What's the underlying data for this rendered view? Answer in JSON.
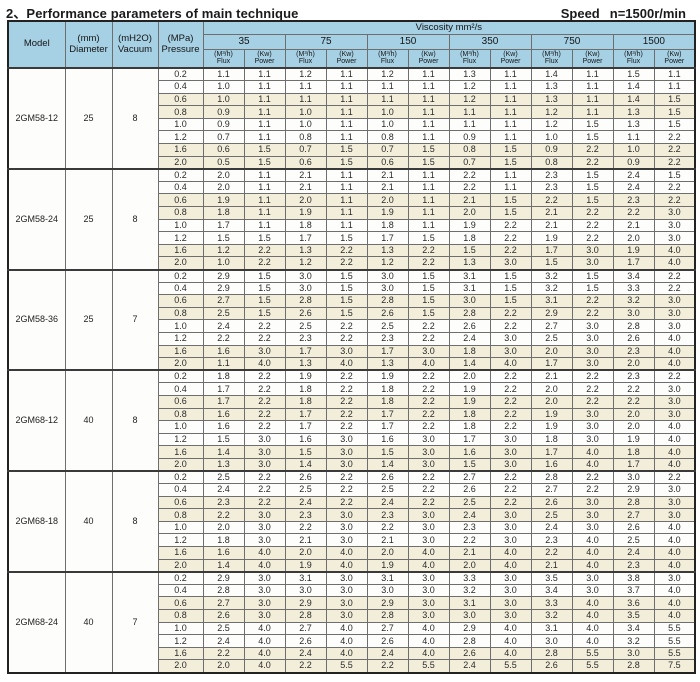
{
  "title": "2、Performance parameters of main technique",
  "speed": {
    "label": "Speed",
    "value": "n=1500r/min"
  },
  "header": {
    "model": "Model",
    "diameter": [
      "(mm)",
      "Diameter"
    ],
    "vacuum": [
      "(mH2O)",
      "Vacuum"
    ],
    "pressure": [
      "(MPa)",
      "Pressure"
    ],
    "viscosity_title": "Viscosity mm²/s",
    "viscosity_values": [
      "35",
      "75",
      "150",
      "350",
      "750",
      "1500"
    ],
    "flux": [
      "(M³/h)",
      "Flux"
    ],
    "power": [
      "(Kw)",
      "Power"
    ]
  },
  "colors": {
    "header_blue": "#a6d0e4",
    "model_blue": "#aed7ea",
    "row_cream": "#f2eeda",
    "row_white": "#fdfdfb",
    "grid_line": "#6e6e6e",
    "frame": "#222222"
  },
  "groups": [
    {
      "model": "2GM58-12",
      "diameter": "25",
      "vacuum": "8",
      "rows": [
        {
          "pressure": "0.2",
          "values": [
            "1.1",
            "1.1",
            "1.2",
            "1.1",
            "1.2",
            "1.1",
            "1.3",
            "1.1",
            "1.4",
            "1.1",
            "1.5",
            "1.1"
          ]
        },
        {
          "pressure": "0.4",
          "values": [
            "1.0",
            "1.1",
            "1.1",
            "1.1",
            "1.1",
            "1.1",
            "1.2",
            "1.1",
            "1.3",
            "1.1",
            "1.4",
            "1.1"
          ]
        },
        {
          "pressure": "0.6",
          "values": [
            "1.0",
            "1.1",
            "1.1",
            "1.1",
            "1.1",
            "1.1",
            "1.2",
            "1.1",
            "1.3",
            "1.1",
            "1.4",
            "1.5"
          ]
        },
        {
          "pressure": "0.8",
          "values": [
            "0.9",
            "1.1",
            "1.0",
            "1.1",
            "1.0",
            "1.1",
            "1.1",
            "1.1",
            "1.2",
            "1.1",
            "1.3",
            "1.5"
          ]
        },
        {
          "pressure": "1.0",
          "values": [
            "0.9",
            "1.1",
            "1.0",
            "1.1",
            "1.0",
            "1.1",
            "1.1",
            "1.1",
            "1.2",
            "1.5",
            "1.3",
            "1.5"
          ]
        },
        {
          "pressure": "1.2",
          "values": [
            "0.7",
            "1.1",
            "0.8",
            "1.1",
            "0.8",
            "1.1",
            "0.9",
            "1.1",
            "1.0",
            "1.5",
            "1.1",
            "2.2"
          ]
        },
        {
          "pressure": "1.6",
          "values": [
            "0.6",
            "1.5",
            "0.7",
            "1.5",
            "0.7",
            "1.5",
            "0.8",
            "1.5",
            "0.9",
            "2.2",
            "1.0",
            "2.2"
          ]
        },
        {
          "pressure": "2.0",
          "values": [
            "0.5",
            "1.5",
            "0.6",
            "1.5",
            "0.6",
            "1.5",
            "0.7",
            "1.5",
            "0.8",
            "2.2",
            "0.9",
            "2.2"
          ]
        }
      ]
    },
    {
      "model": "2GM58-24",
      "diameter": "25",
      "vacuum": "8",
      "rows": [
        {
          "pressure": "0.2",
          "values": [
            "2.0",
            "1.1",
            "2.1",
            "1.1",
            "2.1",
            "1.1",
            "2.2",
            "1.1",
            "2.3",
            "1.5",
            "2.4",
            "1.5"
          ]
        },
        {
          "pressure": "0.4",
          "values": [
            "2.0",
            "1.1",
            "2.1",
            "1.1",
            "2.1",
            "1.1",
            "2.2",
            "1.1",
            "2.3",
            "1.5",
            "2.4",
            "2.2"
          ]
        },
        {
          "pressure": "0.6",
          "values": [
            "1.9",
            "1.1",
            "2.0",
            "1.1",
            "2.0",
            "1.1",
            "2.1",
            "1.5",
            "2.2",
            "1.5",
            "2.3",
            "2.2"
          ]
        },
        {
          "pressure": "0.8",
          "values": [
            "1.8",
            "1.1",
            "1.9",
            "1.1",
            "1.9",
            "1.1",
            "2.0",
            "1.5",
            "2.1",
            "2.2",
            "2.2",
            "3.0"
          ]
        },
        {
          "pressure": "1.0",
          "values": [
            "1.7",
            "1.1",
            "1.8",
            "1.1",
            "1.8",
            "1.1",
            "1.9",
            "2.2",
            "2.1",
            "2.2",
            "2.1",
            "3.0"
          ]
        },
        {
          "pressure": "1.2",
          "values": [
            "1.5",
            "1.5",
            "1.7",
            "1.5",
            "1.7",
            "1.5",
            "1.8",
            "2.2",
            "1.9",
            "2.2",
            "2.0",
            "3.0"
          ]
        },
        {
          "pressure": "1.6",
          "values": [
            "1.2",
            "2.2",
            "1.3",
            "2.2",
            "1.3",
            "2.2",
            "1.5",
            "2.2",
            "1.7",
            "3.0",
            "1.9",
            "4.0"
          ]
        },
        {
          "pressure": "2.0",
          "values": [
            "1.0",
            "2.2",
            "1.2",
            "2.2",
            "1.2",
            "2.2",
            "1.3",
            "3.0",
            "1.5",
            "3.0",
            "1.7",
            "4.0"
          ]
        }
      ]
    },
    {
      "model": "2GM58-36",
      "diameter": "25",
      "vacuum": "7",
      "rows": [
        {
          "pressure": "0.2",
          "values": [
            "2.9",
            "1.5",
            "3.0",
            "1.5",
            "3.0",
            "1.5",
            "3.1",
            "1.5",
            "3.2",
            "1.5",
            "3.4",
            "2.2"
          ]
        },
        {
          "pressure": "0.4",
          "values": [
            "2.9",
            "1.5",
            "3.0",
            "1.5",
            "3.0",
            "1.5",
            "3.1",
            "1.5",
            "3.2",
            "1.5",
            "3.3",
            "2.2"
          ]
        },
        {
          "pressure": "0.6",
          "values": [
            "2.7",
            "1.5",
            "2.8",
            "1.5",
            "2.8",
            "1.5",
            "3.0",
            "1.5",
            "3.1",
            "2.2",
            "3.2",
            "3.0"
          ]
        },
        {
          "pressure": "0.8",
          "values": [
            "2.5",
            "1.5",
            "2.6",
            "1.5",
            "2.6",
            "1.5",
            "2.8",
            "2.2",
            "2.9",
            "2.2",
            "3.0",
            "3.0"
          ]
        },
        {
          "pressure": "1.0",
          "values": [
            "2.4",
            "2.2",
            "2.5",
            "2.2",
            "2.5",
            "2.2",
            "2.6",
            "2.2",
            "2.7",
            "3.0",
            "2.8",
            "3.0"
          ]
        },
        {
          "pressure": "1.2",
          "values": [
            "2.2",
            "2.2",
            "2.3",
            "2.2",
            "2.3",
            "2.2",
            "2.4",
            "3.0",
            "2.5",
            "3.0",
            "2.6",
            "4.0"
          ]
        },
        {
          "pressure": "1.6",
          "values": [
            "1.6",
            "3.0",
            "1.7",
            "3.0",
            "1.7",
            "3.0",
            "1.8",
            "3.0",
            "2.0",
            "3.0",
            "2.3",
            "4.0"
          ]
        },
        {
          "pressure": "2.0",
          "values": [
            "1.1",
            "4.0",
            "1.3",
            "4.0",
            "1.3",
            "4.0",
            "1.4",
            "4.0",
            "1.7",
            "3.0",
            "2.0",
            "4.0"
          ]
        }
      ]
    },
    {
      "model": "2GM68-12",
      "diameter": "40",
      "vacuum": "8",
      "rows": [
        {
          "pressure": "0.2",
          "values": [
            "1.8",
            "2.2",
            "1.9",
            "2.2",
            "1.9",
            "2.2",
            "2.0",
            "2.2",
            "2.1",
            "2.2",
            "2.3",
            "2.2"
          ]
        },
        {
          "pressure": "0.4",
          "values": [
            "1.7",
            "2.2",
            "1.8",
            "2.2",
            "1.8",
            "2.2",
            "1.9",
            "2.2",
            "2.0",
            "2.2",
            "2.2",
            "3.0"
          ]
        },
        {
          "pressure": "0.6",
          "values": [
            "1.7",
            "2.2",
            "1.8",
            "2.2",
            "1.8",
            "2.2",
            "1.9",
            "2.2",
            "2.0",
            "2.2",
            "2.2",
            "3.0"
          ]
        },
        {
          "pressure": "0.8",
          "values": [
            "1.6",
            "2.2",
            "1.7",
            "2.2",
            "1.7",
            "2.2",
            "1.8",
            "2.2",
            "1.9",
            "3.0",
            "2.0",
            "3.0"
          ]
        },
        {
          "pressure": "1.0",
          "values": [
            "1.6",
            "2.2",
            "1.7",
            "2.2",
            "1.7",
            "2.2",
            "1.8",
            "2.2",
            "1.9",
            "3.0",
            "2.0",
            "4.0"
          ]
        },
        {
          "pressure": "1.2",
          "values": [
            "1.5",
            "3.0",
            "1.6",
            "3.0",
            "1.6",
            "3.0",
            "1.7",
            "3.0",
            "1.8",
            "3.0",
            "1.9",
            "4.0"
          ]
        },
        {
          "pressure": "1.6",
          "values": [
            "1.4",
            "3.0",
            "1.5",
            "3.0",
            "1.5",
            "3.0",
            "1.6",
            "3.0",
            "1.7",
            "4.0",
            "1.8",
            "4.0"
          ]
        },
        {
          "pressure": "2.0",
          "values": [
            "1.3",
            "3.0",
            "1.4",
            "3.0",
            "1.4",
            "3.0",
            "1.5",
            "3.0",
            "1.6",
            "4.0",
            "1.7",
            "4.0"
          ]
        }
      ]
    },
    {
      "model": "2GM68-18",
      "diameter": "40",
      "vacuum": "8",
      "rows": [
        {
          "pressure": "0.2",
          "values": [
            "2.5",
            "2.2",
            "2.6",
            "2.2",
            "2.6",
            "2.2",
            "2.7",
            "2.2",
            "2.8",
            "2.2",
            "3.0",
            "2.2"
          ]
        },
        {
          "pressure": "0.4",
          "values": [
            "2.4",
            "2.2",
            "2.5",
            "2.2",
            "2.5",
            "2.2",
            "2.6",
            "2.2",
            "2.7",
            "2.2",
            "2.9",
            "3.0"
          ]
        },
        {
          "pressure": "0.6",
          "values": [
            "2.3",
            "2.2",
            "2.4",
            "2.2",
            "2.4",
            "2.2",
            "2.5",
            "2.2",
            "2.6",
            "3.0",
            "2.8",
            "3.0"
          ]
        },
        {
          "pressure": "0.8",
          "values": [
            "2.2",
            "3.0",
            "2.3",
            "3.0",
            "2.3",
            "3.0",
            "2.4",
            "3.0",
            "2.5",
            "3.0",
            "2.7",
            "3.0"
          ]
        },
        {
          "pressure": "1.0",
          "values": [
            "2.0",
            "3.0",
            "2.2",
            "3.0",
            "2.2",
            "3.0",
            "2.3",
            "3.0",
            "2.4",
            "3.0",
            "2.6",
            "4.0"
          ]
        },
        {
          "pressure": "1.2",
          "values": [
            "1.8",
            "3.0",
            "2.1",
            "3.0",
            "2.1",
            "3.0",
            "2.2",
            "3.0",
            "2.3",
            "4.0",
            "2.5",
            "4.0"
          ]
        },
        {
          "pressure": "1.6",
          "values": [
            "1.6",
            "4.0",
            "2.0",
            "4.0",
            "2.0",
            "4.0",
            "2.1",
            "4.0",
            "2.2",
            "4.0",
            "2.4",
            "4.0"
          ]
        },
        {
          "pressure": "2.0",
          "values": [
            "1.4",
            "4.0",
            "1.9",
            "4.0",
            "1.9",
            "4.0",
            "2.0",
            "4.0",
            "2.1",
            "4.0",
            "2.3",
            "4.0"
          ]
        }
      ]
    },
    {
      "model": "2GM68-24",
      "diameter": "40",
      "vacuum": "7",
      "rows": [
        {
          "pressure": "0.2",
          "values": [
            "2.9",
            "3.0",
            "3.1",
            "3.0",
            "3.1",
            "3.0",
            "3.3",
            "3.0",
            "3.5",
            "3.0",
            "3.8",
            "3.0"
          ]
        },
        {
          "pressure": "0.4",
          "values": [
            "2.8",
            "3.0",
            "3.0",
            "3.0",
            "3.0",
            "3.0",
            "3.2",
            "3.0",
            "3.4",
            "3.0",
            "3.7",
            "4.0"
          ]
        },
        {
          "pressure": "0.6",
          "values": [
            "2.7",
            "3.0",
            "2.9",
            "3.0",
            "2.9",
            "3.0",
            "3.1",
            "3.0",
            "3.3",
            "4.0",
            "3.6",
            "4.0"
          ]
        },
        {
          "pressure": "0.8",
          "values": [
            "2.6",
            "3.0",
            "2.8",
            "3.0",
            "2.8",
            "3.0",
            "3.0",
            "3.0",
            "3.2",
            "4.0",
            "3.5",
            "4.0"
          ]
        },
        {
          "pressure": "1.0",
          "values": [
            "2.5",
            "4.0",
            "2.7",
            "4.0",
            "2.7",
            "4.0",
            "2.9",
            "4.0",
            "3.1",
            "4.0",
            "3.4",
            "5.5"
          ]
        },
        {
          "pressure": "1.2",
          "values": [
            "2.4",
            "4.0",
            "2.6",
            "4.0",
            "2.6",
            "4.0",
            "2.8",
            "4.0",
            "3.0",
            "4.0",
            "3.2",
            "5.5"
          ]
        },
        {
          "pressure": "1.6",
          "values": [
            "2.2",
            "4.0",
            "2.4",
            "4.0",
            "2.4",
            "4.0",
            "2.6",
            "4.0",
            "2.8",
            "5.5",
            "3.0",
            "5.5"
          ]
        },
        {
          "pressure": "2.0",
          "values": [
            "2.0",
            "4.0",
            "2.2",
            "5.5",
            "2.2",
            "5.5",
            "2.4",
            "5.5",
            "2.6",
            "5.5",
            "2.8",
            "7.5"
          ]
        }
      ]
    }
  ]
}
